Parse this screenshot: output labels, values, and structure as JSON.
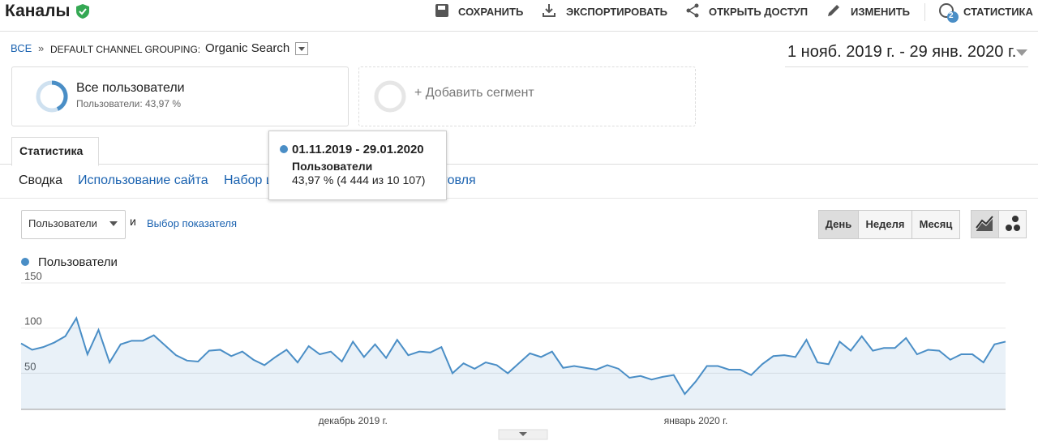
{
  "header": {
    "title": "Каналы",
    "actions": [
      "СОХРАНИТЬ",
      "ЭКСПОРТИРОВАТЬ",
      "ОТКРЫТЬ ДОСТУП",
      "ИЗМЕНИТЬ",
      "СТАТИСТИКА"
    ],
    "badge": "2"
  },
  "breadcrumb": {
    "all": "ВСЕ",
    "separator": "»",
    "grouping": "DEFAULT CHANNEL GROUPING:",
    "value": "Organic Search"
  },
  "date_range": "1 нояб. 2019 г. - 29 янв. 2020 г.",
  "segment": {
    "name": "Все пользователи",
    "detail": "Пользователи: 43,97 %"
  },
  "add_segment": "+ Добавить сегмент",
  "tooltip": {
    "dates": "01.11.2019 - 29.01.2020",
    "metric": "Пользователи",
    "value": "43,97 % (4 444 из 10 107)"
  },
  "tab": "Статистика",
  "subtabs": [
    "Сводка",
    "Использование сайта",
    "Набор целей",
    "Электронная торговля"
  ],
  "controls": {
    "metric": "Пользователи",
    "and": "и",
    "choose_metric": "Выбор показателя",
    "periods": [
      "День",
      "Неделя",
      "Месяц"
    ]
  },
  "chart_data": {
    "type": "line",
    "categories": [
      null,
      null,
      null,
      null,
      null,
      null,
      null,
      null,
      null,
      null,
      null,
      null,
      null,
      null,
      null,
      null,
      null,
      null,
      null,
      null,
      null,
      null,
      null,
      null,
      null,
      null,
      null,
      null,
      null,
      null,
      "декабрь 2019 г.",
      null,
      null,
      null,
      null,
      null,
      null,
      null,
      null,
      null,
      null,
      null,
      null,
      null,
      null,
      null,
      null,
      null,
      null,
      null,
      null,
      null,
      null,
      null,
      null,
      null,
      null,
      null,
      null,
      null,
      null,
      "январь 2020 г.",
      null,
      null,
      null,
      null,
      null,
      null,
      null,
      null,
      null,
      null,
      null,
      null,
      null,
      null,
      null,
      null,
      null,
      null,
      null,
      null,
      null,
      null,
      null,
      null,
      null,
      null,
      null,
      null
    ],
    "series": [
      {
        "name": "Пользователи",
        "color": "#4a8ec6",
        "values": [
          83,
          76,
          79,
          84,
          91,
          111,
          71,
          98,
          62,
          82,
          86,
          86,
          92,
          81,
          70,
          64,
          63,
          75,
          76,
          69,
          74,
          65,
          59,
          68,
          76,
          62,
          80,
          71,
          74,
          63,
          85,
          68,
          82,
          67,
          87,
          70,
          74,
          73,
          79,
          50,
          61,
          55,
          62,
          59,
          50,
          61,
          72,
          68,
          74,
          56,
          58,
          56,
          54,
          59,
          55,
          45,
          47,
          43,
          46,
          48,
          27,
          41,
          58,
          58,
          54,
          54,
          48,
          60,
          69,
          70,
          68,
          87,
          62,
          60,
          85,
          75,
          91,
          75,
          78,
          78,
          89,
          71,
          76,
          75,
          65,
          71,
          71,
          62,
          82,
          85
        ]
      }
    ],
    "ylim": [
      10,
      150
    ],
    "yticks": [
      50,
      100,
      150
    ],
    "grid": true
  }
}
